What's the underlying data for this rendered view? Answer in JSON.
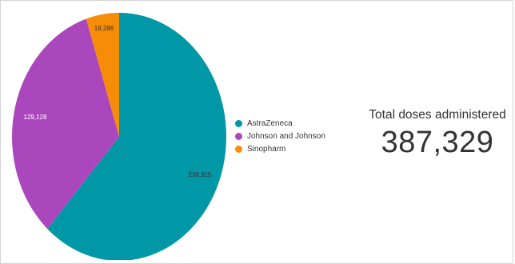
{
  "chart_data": {
    "type": "pie",
    "slices": [
      {
        "label": "AstraZeneca",
        "value": 238915,
        "value_label": "238,915",
        "color": "#0097a7",
        "label_dark": true
      },
      {
        "label": "Johnson and Johnson",
        "value": 129128,
        "value_label": "129,128",
        "color": "#ab47bc",
        "label_dark": false
      },
      {
        "label": "Sinopharm",
        "value": 19286,
        "value_label": "19,286",
        "color": "#f78c08",
        "label_dark": true
      }
    ],
    "legend_position": "right"
  },
  "legend": [
    {
      "label": "AstraZeneca",
      "color": "#0097a7"
    },
    {
      "label": "Johnson and Johnson",
      "color": "#ab47bc"
    },
    {
      "label": "Sinopharm",
      "color": "#f78c08"
    }
  ],
  "scorecard": {
    "label": "Total doses administered",
    "value": "387,329"
  }
}
